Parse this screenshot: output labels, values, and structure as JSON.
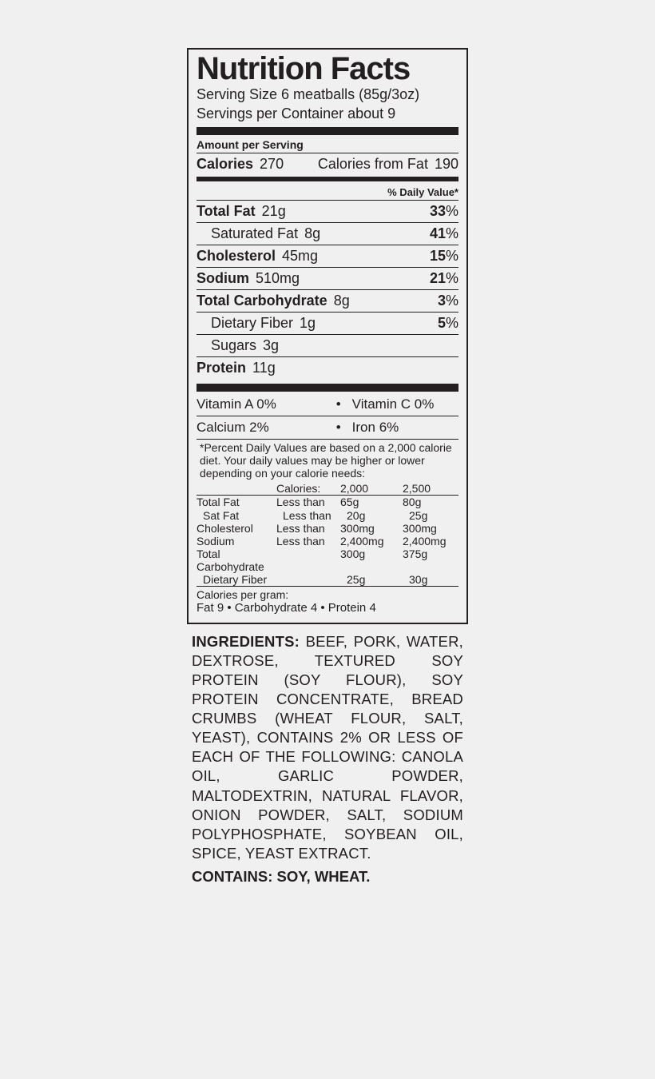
{
  "title": "Nutrition Facts",
  "serving_size": "Serving Size 6 meatballs (85g/3oz)",
  "servings_per": "Servings per Container about 9",
  "aps": "Amount per Serving",
  "cal_label": "Calories",
  "cal_val": "270",
  "cal_fat_label": "Calories from Fat",
  "cal_fat_val": "190",
  "dv_header": "% Daily Value*",
  "rows": [
    {
      "label": "Total Fat",
      "val": "21g",
      "pct": "33",
      "bold": true,
      "sub": false
    },
    {
      "label": "Saturated Fat",
      "val": "8g",
      "pct": "41",
      "bold": false,
      "sub": true
    },
    {
      "label": "Cholesterol",
      "val": "45mg",
      "pct": "15",
      "bold": true,
      "sub": false
    },
    {
      "label": "Sodium",
      "val": "510mg",
      "pct": "21",
      "bold": true,
      "sub": false
    },
    {
      "label": "Total Carbohydrate",
      "val": "8g",
      "pct": "3",
      "bold": true,
      "sub": false
    },
    {
      "label": "Dietary Fiber",
      "val": "1g",
      "pct": "5",
      "bold": false,
      "sub": true
    },
    {
      "label": "Sugars",
      "val": "3g",
      "pct": "",
      "bold": false,
      "sub": true
    },
    {
      "label": "Protein",
      "val": "11g",
      "pct": "",
      "bold": true,
      "sub": false
    }
  ],
  "vit": [
    {
      "l": "Vitamin A 0%",
      "r": "Vitamin C 0%"
    },
    {
      "l": "Calcium 2%",
      "r": "Iron 6%"
    }
  ],
  "footnote": "*Percent Daily Values are based on a 2,000 calorie diet. Your daily values may be higher or lower depending on your calorie needs:",
  "ref_head": {
    "c2": "Calories:",
    "c3": "2,000",
    "c4": "2,500"
  },
  "ref": [
    {
      "c1": "Total Fat",
      "c2": "Less than",
      "c3": "65g",
      "c4": "80g",
      "indent": false
    },
    {
      "c1": "Sat Fat",
      "c2": "Less than",
      "c3": "20g",
      "c4": "25g",
      "indent": true
    },
    {
      "c1": "Cholesterol",
      "c2": "Less than",
      "c3": "300mg",
      "c4": "300mg",
      "indent": false
    },
    {
      "c1": "Sodium",
      "c2": "Less than",
      "c3": "2,400mg",
      "c4": "2,400mg",
      "indent": false
    },
    {
      "c1": "Total Carbohydrate",
      "c2": "",
      "c3": "300g",
      "c4": "375g",
      "indent": false
    },
    {
      "c1": "Dietary Fiber",
      "c2": "",
      "c3": "25g",
      "c4": "30g",
      "indent": true
    }
  ],
  "cpg1": "Calories per gram:",
  "cpg2": "Fat  9   •   Carbohydrate  4   •   Protein  4",
  "ing_head": "INGREDIENTS:",
  "ing_body": " BEEF, PORK, WATER, DEXTROSE, TEXTURED SOY PROTEIN (SOY FLOUR), SOY PROTEIN CONCENTRATE, BREAD CRUMBS (WHEAT FLOUR, SALT, YEAST), CONTAINS 2% OR LESS OF EACH OF THE FOLLOWING:  CANOLA OIL, GARLIC POWDER, MALTODEXTRIN, NATURAL FLAVOR, ONION POWDER, SALT, SODIUM POLYPHOSPHATE, SOYBEAN OIL, SPICE, YEAST EXTRACT.",
  "contains": "CONTAINS: SOY, WHEAT."
}
